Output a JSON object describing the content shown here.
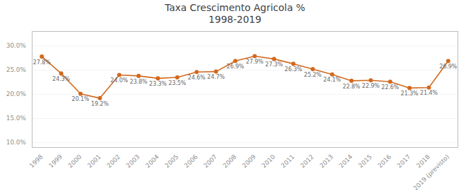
{
  "chart_data": {
    "type": "line",
    "title": "Taxa Crescimento Agricola %",
    "subtitle": "1998-2019",
    "categories": [
      "1998",
      "1999",
      "2000",
      "2001",
      "2002",
      "2003",
      "2004",
      "2005",
      "2006",
      "2007",
      "2008",
      "2009",
      "2010",
      "2011",
      "2012",
      "2013",
      "2014",
      "2015",
      "2016",
      "2017",
      "2018",
      "2019 (previsto)"
    ],
    "values": [
      27.8,
      24.3,
      20.1,
      19.2,
      24.0,
      23.8,
      23.3,
      23.5,
      24.6,
      24.7,
      26.9,
      27.9,
      27.3,
      26.3,
      25.2,
      24.1,
      22.8,
      22.9,
      22.6,
      21.3,
      21.4,
      26.9
    ],
    "value_labels": [
      "27.8%",
      "24.3%",
      "20.1%",
      "19.2%",
      "24.0%",
      "23.8%",
      "23.3%",
      "23.5%",
      "24.6%",
      "24.7%",
      "26.9%",
      "27.9%",
      "27.3%",
      "26.3%",
      "25.2%",
      "24.1%",
      "22.8%",
      "22.9%",
      "22.6%",
      "21.3%",
      "21.4%",
      "26.9%"
    ],
    "color": "#D2691E",
    "marker": "circle",
    "data_labels": true,
    "ylim": [
      9.0,
      33.0
    ],
    "yticks": [
      {
        "value": 10.0,
        "label": "10.0%"
      },
      {
        "value": 15.0,
        "label": "15.0%"
      },
      {
        "value": 20.0,
        "label": "20.0%"
      },
      {
        "value": 25.0,
        "label": "25.0%"
      },
      {
        "value": 30.0,
        "label": "30.0%"
      }
    ],
    "grid": true
  }
}
